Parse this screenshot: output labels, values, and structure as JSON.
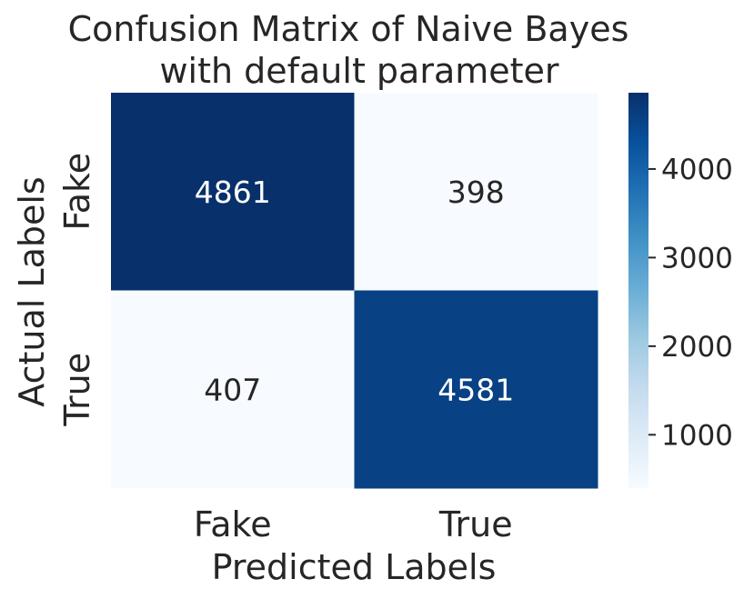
{
  "chart_data": {
    "type": "heatmap",
    "title": "Confusion Matrix of Naive Bayes\nwith default parameter",
    "xlabel": "Predicted Labels",
    "ylabel": "Actual Labels",
    "x_categories": [
      "Fake",
      "True"
    ],
    "y_categories": [
      "Fake",
      "True"
    ],
    "values": [
      [
        4861,
        398
      ],
      [
        407,
        4581
      ]
    ],
    "colormap": "Blues",
    "colorbar": {
      "range": [
        398,
        4861
      ],
      "ticks": [
        1000,
        2000,
        3000,
        4000
      ],
      "tick_labels": [
        "1000",
        "2000",
        "3000",
        "4000"
      ]
    }
  }
}
